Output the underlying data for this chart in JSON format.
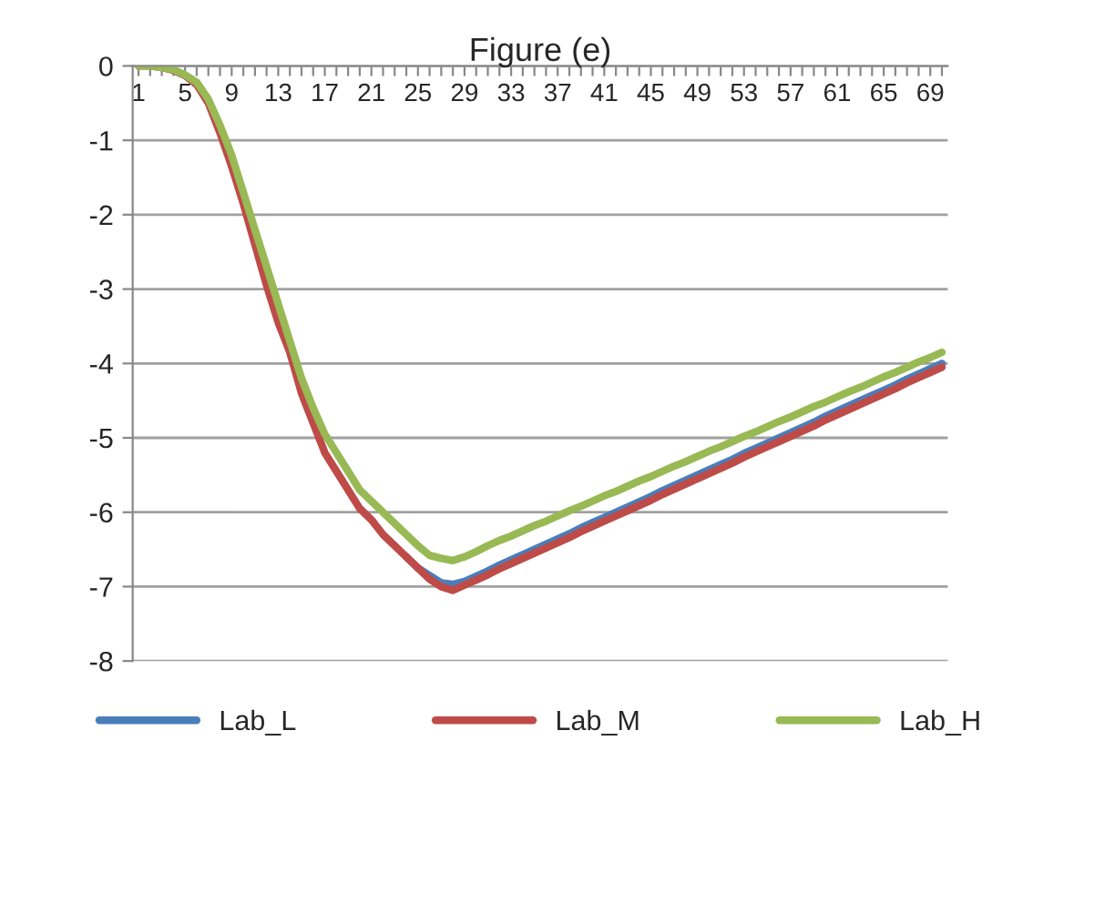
{
  "chart_data": {
    "type": "line",
    "title": "Figure (e)",
    "categories": [
      "1",
      null,
      null,
      null,
      "5",
      null,
      null,
      null,
      "9",
      null,
      null,
      null,
      "13",
      null,
      null,
      null,
      "17",
      null,
      null,
      null,
      "21",
      null,
      null,
      null,
      "25",
      null,
      null,
      null,
      "29",
      null,
      null,
      null,
      "33",
      null,
      null,
      null,
      "37",
      null,
      null,
      null,
      "41",
      null,
      null,
      null,
      "45",
      null,
      null,
      null,
      "49",
      null,
      null,
      null,
      "53",
      null,
      null,
      null,
      "57",
      null,
      null,
      null,
      "61",
      null,
      null,
      null,
      "65",
      null,
      null,
      null,
      "69",
      null
    ],
    "series": [
      {
        "name": "Lab_L",
        "color": "#4a7ebb",
        "values": [
          null,
          null,
          null,
          null,
          null,
          null,
          null,
          null,
          null,
          null,
          null,
          null,
          null,
          null,
          null,
          null,
          null,
          null,
          null,
          null,
          null,
          null,
          null,
          -6.6,
          -6.75,
          -6.85,
          -6.95,
          -6.97,
          -6.93,
          -6.86,
          -6.79,
          -6.71,
          -6.64,
          -6.57,
          -6.5,
          -6.43,
          -6.36,
          -6.29,
          -6.21,
          -6.14,
          -6.07,
          -6.0,
          -5.93,
          -5.86,
          -5.79,
          -5.71,
          -5.64,
          -5.57,
          -5.5,
          -5.43,
          -5.36,
          -5.29,
          -5.21,
          -5.14,
          -5.07,
          -5.0,
          -4.93,
          -4.86,
          -4.79,
          -4.71,
          -4.64,
          -4.57,
          -4.5,
          -4.43,
          -4.36,
          -4.29,
          -4.21,
          -4.14,
          -4.07,
          -4.0
        ]
      },
      {
        "name": "Lab_M",
        "color": "#be4b48",
        "values": [
          0,
          0,
          -0.02,
          -0.06,
          -0.13,
          -0.25,
          -0.5,
          -0.9,
          -1.35,
          -1.85,
          -2.4,
          -2.95,
          -3.45,
          -3.85,
          -4.4,
          -4.8,
          -5.2,
          -5.45,
          -5.7,
          -5.95,
          -6.1,
          -6.3,
          -6.45,
          -6.6,
          -6.75,
          -6.9,
          -7.0,
          -7.05,
          -6.98,
          -6.91,
          -6.84,
          -6.76,
          -6.69,
          -6.62,
          -6.55,
          -6.48,
          -6.41,
          -6.34,
          -6.26,
          -6.19,
          -6.12,
          -6.05,
          -5.98,
          -5.91,
          -5.84,
          -5.76,
          -5.69,
          -5.62,
          -5.55,
          -5.48,
          -5.41,
          -5.34,
          -5.26,
          -5.19,
          -5.12,
          -5.05,
          -4.98,
          -4.91,
          -4.84,
          -4.76,
          -4.69,
          -4.62,
          -4.55,
          -4.48,
          -4.41,
          -4.34,
          -4.26,
          -4.19,
          -4.12,
          -4.05
        ]
      },
      {
        "name": "Lab_H",
        "color": "#98b954",
        "values": [
          0,
          0,
          -0.02,
          -0.05,
          -0.12,
          -0.22,
          -0.45,
          -0.8,
          -1.2,
          -1.7,
          -2.2,
          -2.7,
          -3.2,
          -3.7,
          -4.2,
          -4.6,
          -4.95,
          -5.2,
          -5.45,
          -5.7,
          -5.85,
          -6.0,
          -6.15,
          -6.3,
          -6.45,
          -6.58,
          -6.62,
          -6.65,
          -6.6,
          -6.53,
          -6.45,
          -6.38,
          -6.32,
          -6.25,
          -6.18,
          -6.12,
          -6.05,
          -5.98,
          -5.92,
          -5.85,
          -5.78,
          -5.72,
          -5.65,
          -5.58,
          -5.52,
          -5.45,
          -5.38,
          -5.32,
          -5.25,
          -5.18,
          -5.12,
          -5.05,
          -4.98,
          -4.92,
          -4.85,
          -4.78,
          -4.72,
          -4.65,
          -4.58,
          -4.52,
          -4.45,
          -4.38,
          -4.32,
          -4.25,
          -4.18,
          -4.12,
          -4.05,
          -3.98,
          -3.92,
          -3.85
        ]
      }
    ],
    "ylim": [
      -8,
      0
    ],
    "yticks": [
      -8,
      -7,
      -6,
      -5,
      -4,
      -3,
      -2,
      -1,
      0
    ],
    "grid": "y",
    "legend": "bottom",
    "marker": "none",
    "line_style": "solid"
  }
}
